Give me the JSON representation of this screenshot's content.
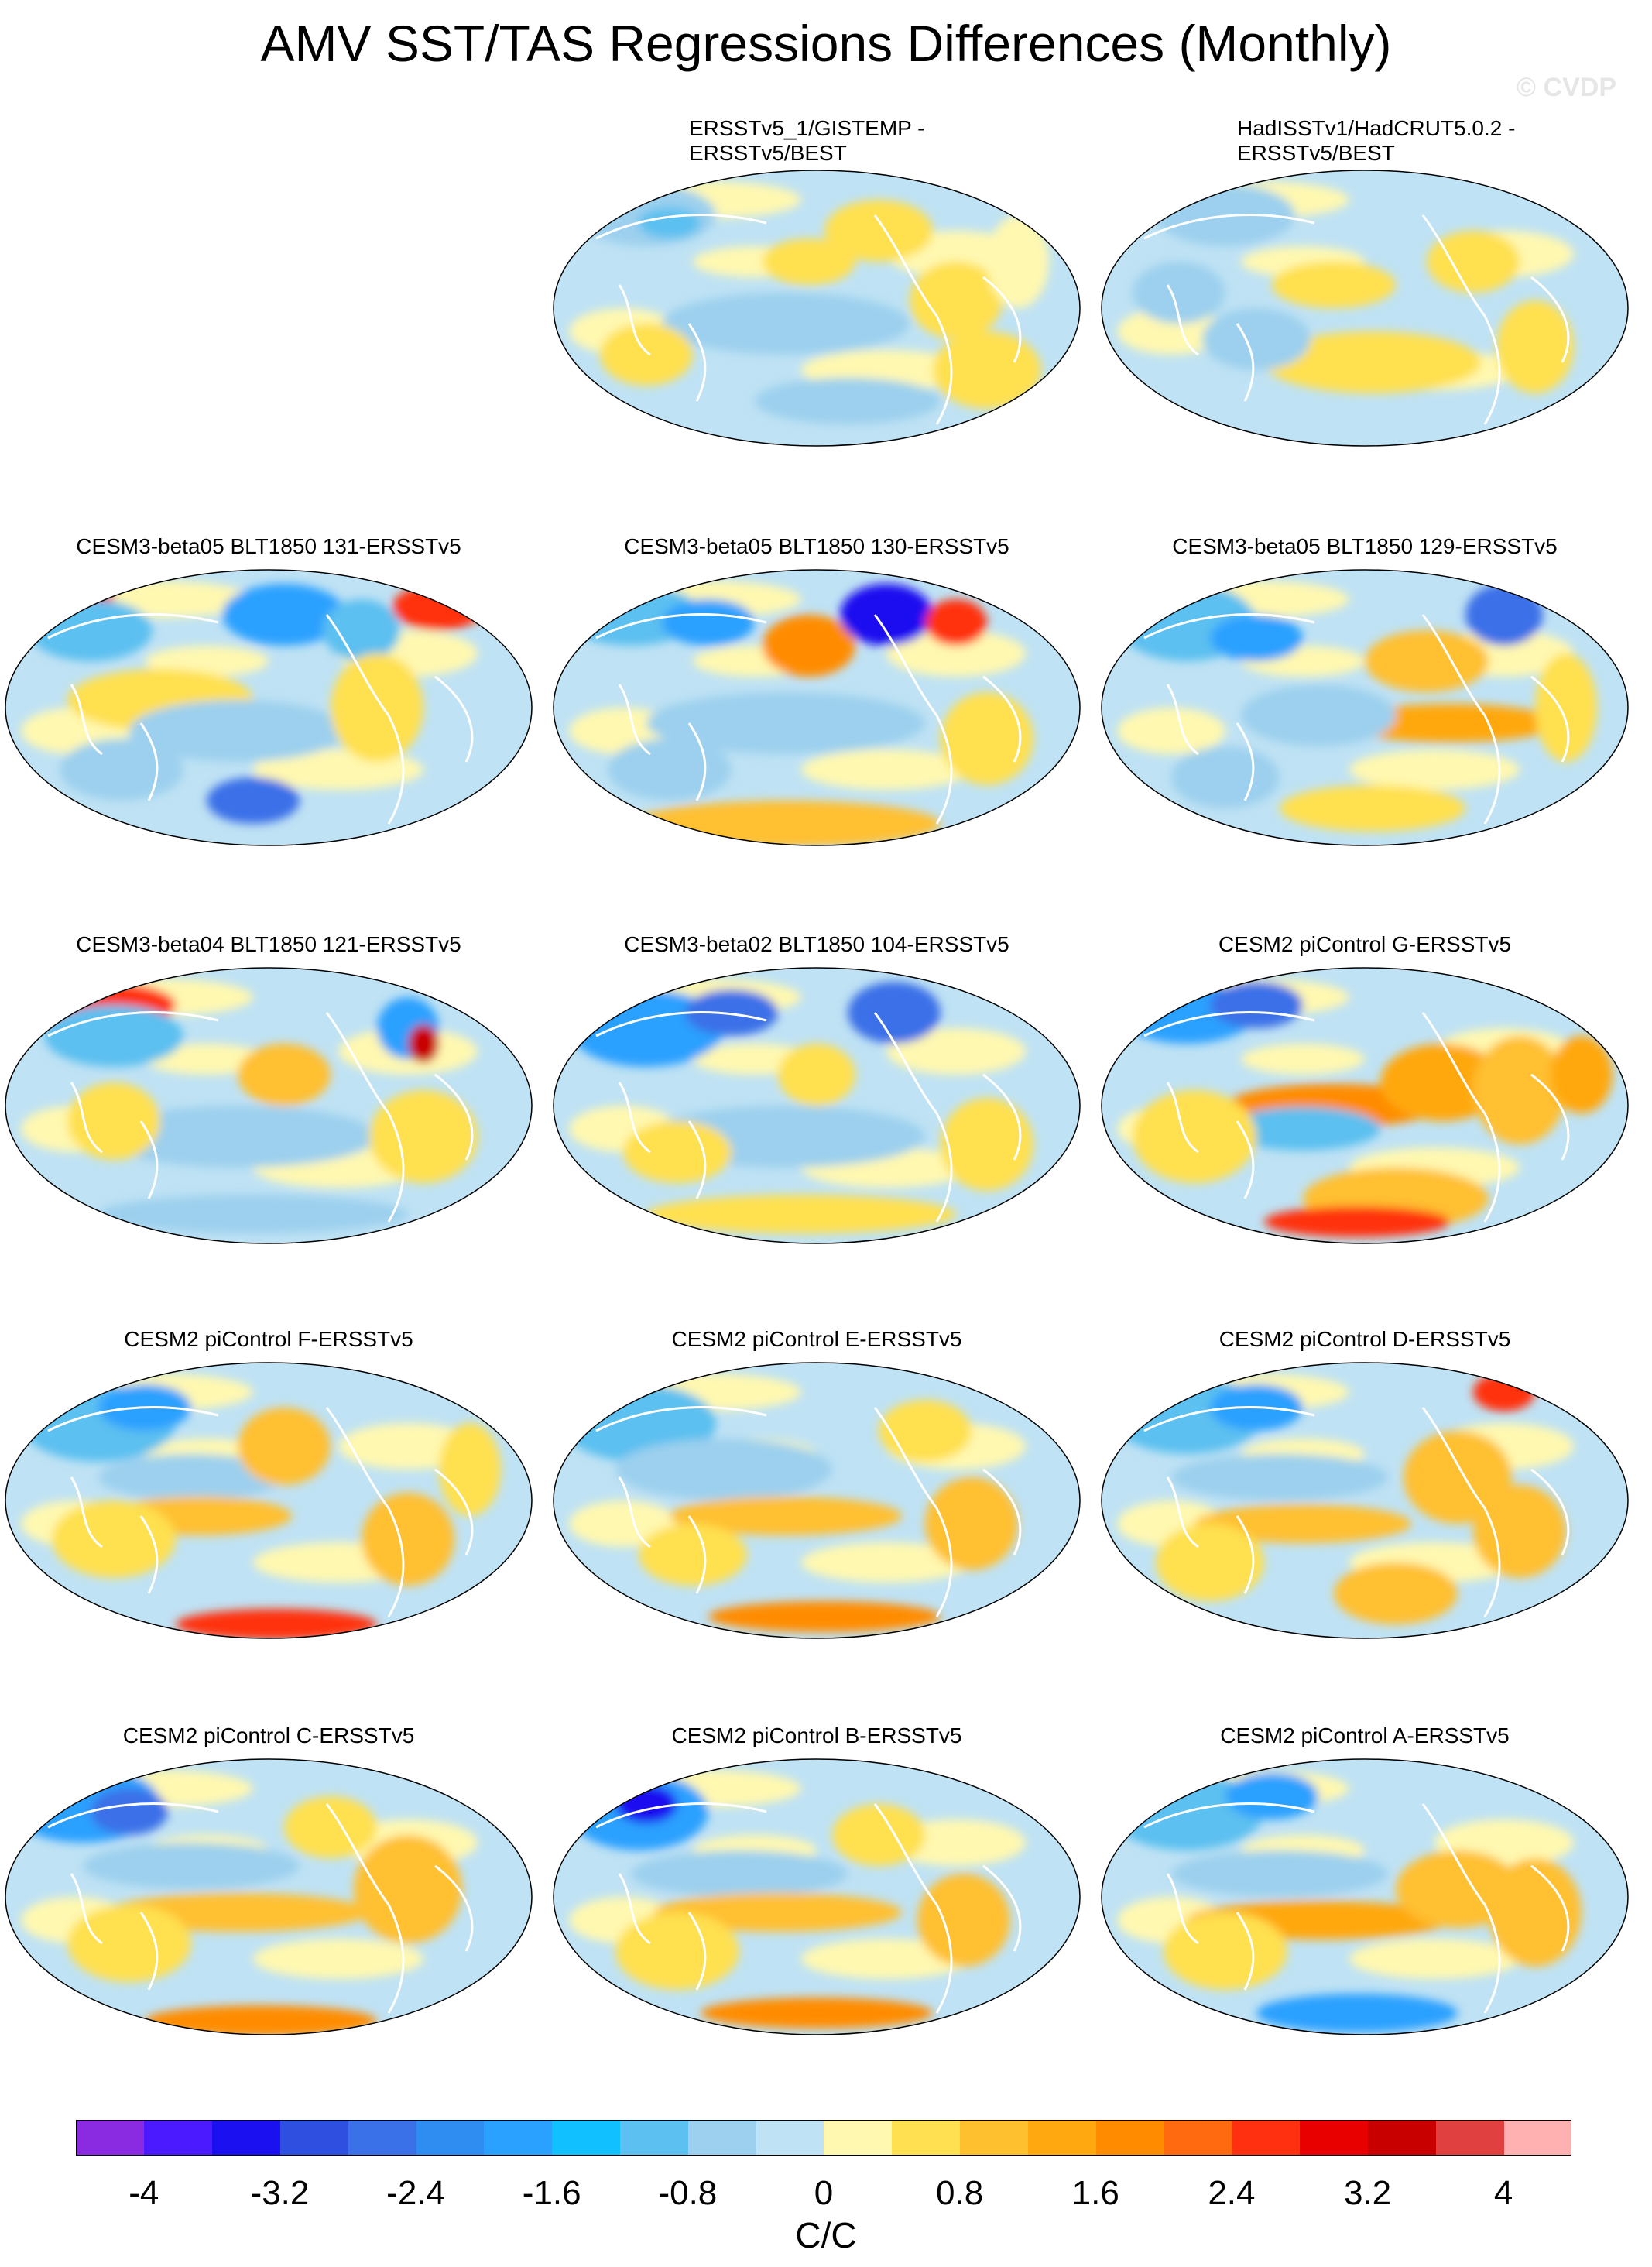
{
  "title": "AMV SST/TAS Regressions Differences (Monthly)",
  "watermark": "© CVDP",
  "panels": [
    {
      "title_line1": "ERSSTv5_1/GISTEMP -",
      "title_line2": "ERSSTv5/BEST",
      "pattern": "obs1"
    },
    {
      "title_line1": "HadISSTv1/HadCRUT5.0.2 -",
      "title_line2": "ERSSTv5/BEST",
      "pattern": "obs2"
    },
    {
      "title_line1": "CESM3-beta05 BLT1850 131-ERSSTv5",
      "pattern": "m131"
    },
    {
      "title_line1": "CESM3-beta05 BLT1850 130-ERSSTv5",
      "pattern": "m130"
    },
    {
      "title_line1": "CESM3-beta05 BLT1850 129-ERSSTv5",
      "pattern": "m129"
    },
    {
      "title_line1": "CESM3-beta04 BLT1850 121-ERSSTv5",
      "pattern": "m121"
    },
    {
      "title_line1": "CESM3-beta02 BLT1850 104-ERSSTv5",
      "pattern": "m104"
    },
    {
      "title_line1": "CESM2 piControl G-ERSSTv5",
      "pattern": "cG"
    },
    {
      "title_line1": "CESM2 piControl F-ERSSTv5",
      "pattern": "cF"
    },
    {
      "title_line1": "CESM2 piControl E-ERSSTv5",
      "pattern": "cE"
    },
    {
      "title_line1": "CESM2 piControl D-ERSSTv5",
      "pattern": "cD"
    },
    {
      "title_line1": "CESM2 piControl C-ERSSTv5",
      "pattern": "cC"
    },
    {
      "title_line1": "CESM2 piControl B-ERSSTv5",
      "pattern": "cB"
    },
    {
      "title_line1": "CESM2 piControl A-ERSSTv5",
      "pattern": "cA"
    }
  ],
  "colorbar": {
    "unit": "C/C",
    "colors": [
      "#8a2be2",
      "#4b1aff",
      "#1b10f0",
      "#2f4fe0",
      "#3a70e8",
      "#2f8cf0",
      "#2aa0ff",
      "#10c0ff",
      "#5cc0f0",
      "#9cd0ee",
      "#bfe2f4",
      "#fff8b0",
      "#ffe050",
      "#ffc030",
      "#ffa810",
      "#ff8c00",
      "#ff6a10",
      "#ff3010",
      "#e80000",
      "#c80000",
      "#e04040",
      "#ffb0b0"
    ],
    "tick_labels": [
      "-4",
      "-3.2",
      "-2.4",
      "-1.6",
      "-0.8",
      "0",
      "0.8",
      "1.6",
      "2.4",
      "3.2",
      "4"
    ]
  }
}
